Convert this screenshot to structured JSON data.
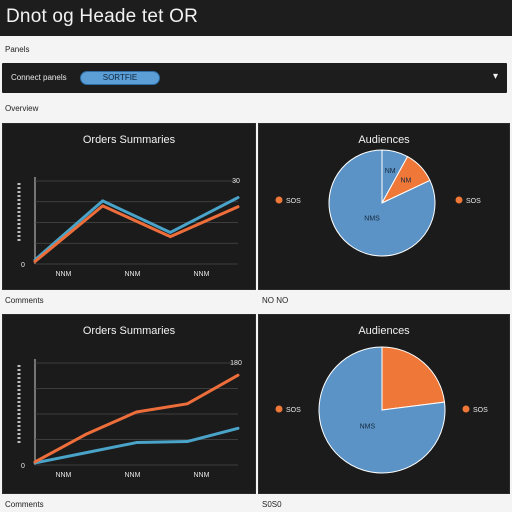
{
  "window": {
    "title": "Dnot og Heade tet OR"
  },
  "section_label_1": "Panels",
  "toolbar": {
    "label": "Connect panels",
    "pill_label": "SORTFIE",
    "cursor_glyph": "▾"
  },
  "section_label_2": "Overview",
  "panels": [
    {
      "title": "Orders Summaries",
      "caption_below": "Comments"
    },
    {
      "title": "Audiences",
      "caption_below": "NO NO"
    },
    {
      "title": "Orders Summaries",
      "caption_below": "Comments"
    },
    {
      "title": "Audiences",
      "caption_below": "S0S0"
    }
  ],
  "colors": {
    "blue": "#4aa3c9",
    "orange": "#ee6e3b",
    "pie_blue": "#5b93c6",
    "pie_orange": "#ef7838",
    "panel_bg": "#1b1b1b"
  },
  "chart_data": [
    {
      "type": "line",
      "title": "Orders Summaries",
      "xlabel": "",
      "ylabel": "",
      "x_tick_labels": [
        "NNM",
        "NNM",
        "NNM"
      ],
      "y_tick_labels": [
        "0"
      ],
      "top_marker": "30",
      "series": [
        {
          "name": "",
          "color": "#4aa3c9",
          "values": [
            0.5,
            7.6,
            3.8,
            8.0
          ]
        },
        {
          "name": "",
          "color": "#ee6e3b",
          "values": [
            0.3,
            7.0,
            3.3,
            6.9
          ]
        }
      ],
      "ylim": [
        0,
        10
      ],
      "grid": true
    },
    {
      "type": "pie",
      "title": "Audiences",
      "slices": [
        {
          "label": "NM",
          "value": 8,
          "color": "#5b93c6"
        },
        {
          "label": "NM",
          "value": 10,
          "color": "#ef7838"
        },
        {
          "label": "NMS",
          "value": 82,
          "color": "#5b93c6"
        }
      ],
      "legend_left": "SOS",
      "legend_right": "SOS"
    },
    {
      "type": "line",
      "title": "Orders Summaries",
      "xlabel": "",
      "ylabel": "",
      "x_tick_labels": [
        "NNM",
        "NNM",
        "NNM"
      ],
      "y_tick_labels": [
        "0"
      ],
      "top_marker": "180",
      "series": [
        {
          "name": "",
          "color": "#4aa3c9",
          "values": [
            0.2,
            1.2,
            2.2,
            2.3,
            3.6
          ]
        },
        {
          "name": "",
          "color": "#ee6e3b",
          "values": [
            0.3,
            3.0,
            5.2,
            6.0,
            8.8
          ]
        }
      ],
      "ylim": [
        0,
        10
      ],
      "grid": true
    },
    {
      "type": "pie",
      "title": "Audiences",
      "slices": [
        {
          "label": "",
          "value": 23,
          "color": "#ef7838"
        },
        {
          "label": "NMS",
          "value": 77,
          "color": "#5b93c6"
        }
      ],
      "legend_left": "SOS",
      "legend_right": "SOS"
    }
  ]
}
